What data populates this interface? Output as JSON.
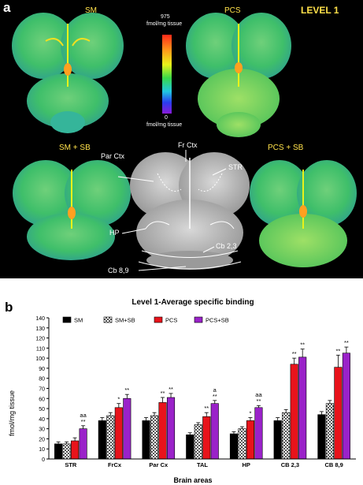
{
  "panel_a": {
    "letter": "a",
    "level_label": "LEVEL 1",
    "groups": [
      "SM",
      "PCS",
      "SM + SB",
      "PCS + SB"
    ],
    "scale_max": "975",
    "scale_unit_top": "fmol/mg tissue",
    "scale_min": "0",
    "scale_unit_bottom": "fmol/mg tissue",
    "regions": [
      "Par Ctx",
      "Fr Ctx",
      "STR",
      "HP",
      "Cb 2,3",
      "Cb 8,9"
    ],
    "colors": {
      "background": "#000000",
      "label": "#ffe14a",
      "tissue": "#3fbf6a"
    }
  },
  "panel_b": {
    "letter": "b"
  },
  "chart_data": {
    "type": "bar",
    "title": "Level 1-Average specific binding",
    "xlabel": "Brain areas",
    "ylabel": "fmol/mg tissue",
    "ylim": [
      0,
      140
    ],
    "yticks": [
      0,
      10,
      20,
      30,
      40,
      50,
      60,
      70,
      80,
      90,
      100,
      110,
      120,
      130,
      140
    ],
    "categories": [
      "STR",
      "FrCx",
      "Par Cx",
      "TAL",
      "HP",
      "CB 2,3",
      "CB 8,9"
    ],
    "legend_position": "top",
    "series": [
      {
        "name": "SM",
        "color": "#000000",
        "values": [
          15,
          38,
          38,
          24,
          25,
          38,
          44
        ],
        "errors": [
          2,
          3,
          3,
          2,
          2,
          3,
          3
        ]
      },
      {
        "name": "SM+SB",
        "color": "#9e9e9e",
        "pattern": "checker",
        "values": [
          15,
          43,
          43,
          34,
          30,
          46,
          55
        ],
        "errors": [
          2,
          3,
          3,
          2,
          2,
          3,
          3
        ]
      },
      {
        "name": "PCS",
        "color": "#e8131b",
        "values": [
          18,
          51,
          56,
          42,
          38,
          94,
          91
        ],
        "errors": [
          3,
          4,
          5,
          4,
          3,
          6,
          12
        ]
      },
      {
        "name": "PCS+SB",
        "color": "#9a22c9",
        "values": [
          30,
          60,
          61,
          55,
          51,
          101,
          105
        ],
        "errors": [
          3,
          4,
          4,
          3,
          2,
          8,
          6
        ]
      }
    ],
    "annotations": [
      {
        "category": "STR",
        "series": "PCS+SB",
        "lines": [
          "aa",
          "**"
        ]
      },
      {
        "category": "FrCx",
        "series": "PCS",
        "lines": [
          "*"
        ]
      },
      {
        "category": "FrCx",
        "series": "PCS+SB",
        "lines": [
          "**"
        ]
      },
      {
        "category": "Par Cx",
        "series": "PCS",
        "lines": [
          "**"
        ]
      },
      {
        "category": "Par Cx",
        "series": "PCS+SB",
        "lines": [
          "**"
        ]
      },
      {
        "category": "TAL",
        "series": "PCS",
        "lines": [
          "**"
        ]
      },
      {
        "category": "TAL",
        "series": "PCS+SB",
        "lines": [
          "a",
          "**"
        ]
      },
      {
        "category": "HP",
        "series": "PCS",
        "lines": [
          "*"
        ]
      },
      {
        "category": "HP",
        "series": "PCS+SB",
        "lines": [
          "aa",
          "**"
        ]
      },
      {
        "category": "CB 2,3",
        "series": "PCS",
        "lines": [
          "**"
        ]
      },
      {
        "category": "CB 2,3",
        "series": "PCS+SB",
        "lines": [
          "**"
        ]
      },
      {
        "category": "CB 8,9",
        "series": "PCS",
        "lines": [
          "**"
        ]
      },
      {
        "category": "CB 8,9",
        "series": "PCS+SB",
        "lines": [
          "**"
        ]
      }
    ]
  }
}
